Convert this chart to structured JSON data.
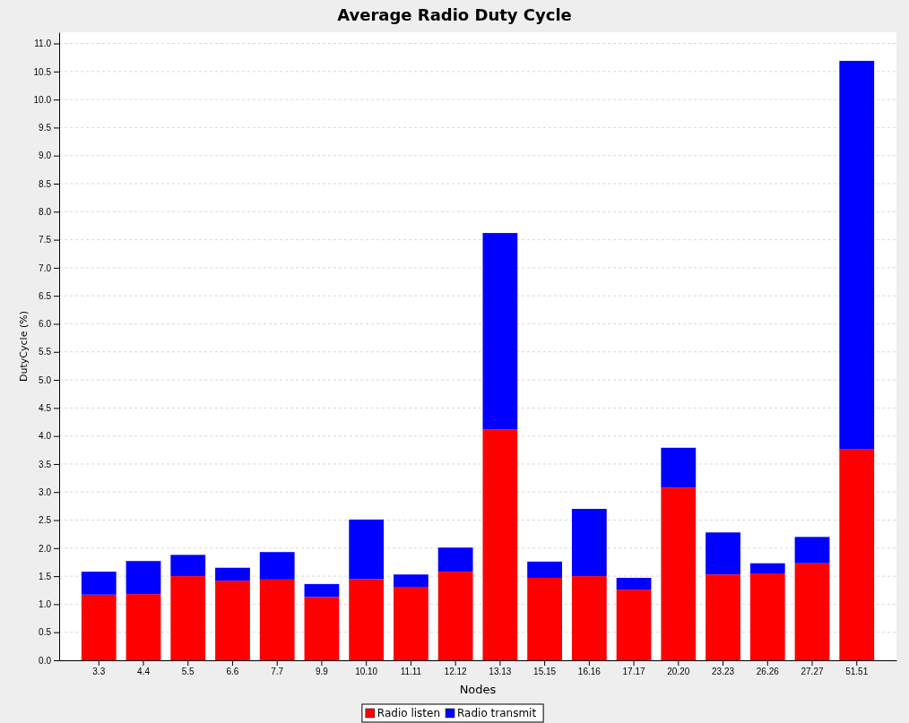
{
  "chart_data": {
    "type": "bar",
    "title": "Average Radio Duty Cycle",
    "xlabel": "Nodes",
    "ylabel": "DutyCycle (%)",
    "categories": [
      "3.3",
      "4.4",
      "5.5",
      "6.6",
      "7.7",
      "9.9",
      "10.10",
      "11.11",
      "12.12",
      "13.13",
      "15.15",
      "16.16",
      "17.17",
      "20.20",
      "23.23",
      "26.26",
      "27.27",
      "51.51"
    ],
    "stacked": true,
    "series": [
      {
        "name": "Radio listen",
        "color": "#ff0000",
        "values": [
          1.17,
          1.18,
          1.5,
          1.42,
          1.44,
          1.13,
          1.45,
          1.31,
          1.58,
          4.12,
          1.47,
          1.5,
          1.26,
          3.08,
          1.53,
          1.55,
          1.73,
          3.77
        ]
      },
      {
        "name": "Radio transmit",
        "color": "#0000ff",
        "values": [
          0.41,
          0.59,
          0.38,
          0.23,
          0.49,
          0.23,
          1.06,
          0.22,
          0.43,
          3.5,
          0.29,
          1.2,
          0.21,
          0.71,
          0.75,
          0.18,
          0.47,
          6.92
        ]
      }
    ],
    "ylim": [
      0,
      11.2
    ],
    "yticks": [
      {
        "value": 0,
        "label": "0.0"
      },
      0.5,
      {
        "value": 1,
        "label": "1.0"
      },
      1.5,
      {
        "value": 2,
        "label": "2.0"
      },
      2.5,
      {
        "value": 3,
        "label": "3.0"
      },
      3.5,
      {
        "value": 4,
        "label": "4.0"
      },
      4.5,
      {
        "value": 5,
        "label": "5.0"
      },
      5.5,
      {
        "value": 6,
        "label": "6.0"
      },
      6.5,
      {
        "value": 7,
        "label": "7.0"
      },
      7.5,
      {
        "value": 8,
        "label": "8.0"
      },
      8.5,
      {
        "value": 9,
        "label": "9.0"
      },
      9.5,
      {
        "value": 10,
        "label": "10.0"
      },
      10.5,
      {
        "value": 11,
        "label": "11.0"
      }
    ],
    "grid": "y",
    "legend": "bottom"
  }
}
